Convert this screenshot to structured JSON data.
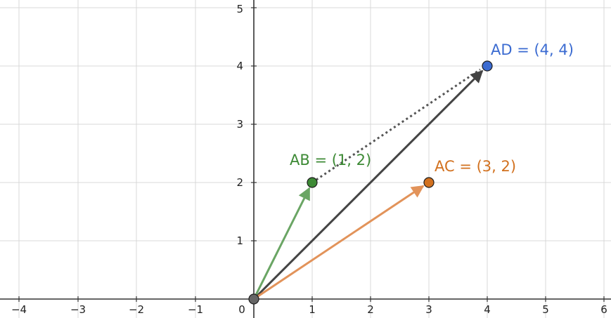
{
  "x_ticks": [
    "−4",
    "−3",
    "−2",
    "−1",
    "1",
    "2",
    "3",
    "4",
    "5",
    "6"
  ],
  "y_ticks": [
    "1",
    "2",
    "3",
    "4",
    "5"
  ],
  "origin_label": "0",
  "colors": {
    "grid": "#d9d9d9",
    "axis": "#333333",
    "ab": "#6aa564",
    "ab_point": "#3d8a35",
    "ac": "#e2935a",
    "ac_point": "#d2711f",
    "ad": "#444444",
    "ad_point": "#3b6bd1",
    "origin_point": "#666666"
  },
  "vectors": [
    {
      "id": "ab",
      "label": "AB = (1, 2)",
      "color_key": "ab"
    },
    {
      "id": "ac",
      "label": "AC = (3, 2)",
      "color_key": "ac"
    },
    {
      "id": "ad",
      "label": "AD = (4, 4)",
      "color_key": "ad"
    }
  ],
  "dotted_segment": {
    "from": "B",
    "to": "D"
  }
}
